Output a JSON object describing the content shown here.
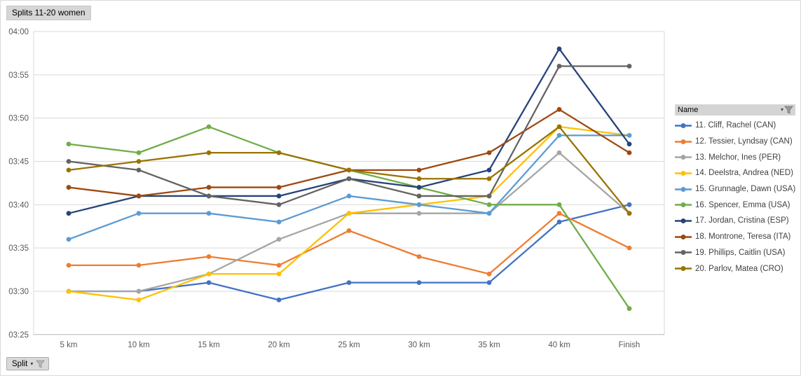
{
  "title_button": "Splits 11-20 women",
  "field_buttons": {
    "split": "Split",
    "legend_header": "Name"
  },
  "chart_data": {
    "type": "line",
    "title": "Splits 11-20 women",
    "xlabel": "",
    "ylabel": "",
    "x_categories": [
      "5 km",
      "10 km",
      "15 km",
      "20 km",
      "25 km",
      "30 km",
      "35 km",
      "40 km",
      "Finish"
    ],
    "y_ticks": [
      "04:00",
      "03:55",
      "03:50",
      "03:45",
      "03:40",
      "03:35",
      "03:30",
      "03:25"
    ],
    "y_range": [
      "03:25",
      "04:00"
    ],
    "grid": true,
    "legend_position": "right",
    "series": [
      {
        "name": "11. Cliff, Rachel (CAN)",
        "color": "#4472C4",
        "values": [
          "03:30",
          "03:30",
          "03:31",
          "03:29",
          "03:31",
          "03:31",
          "03:31",
          "03:38",
          "03:40"
        ]
      },
      {
        "name": "12. Tessier, Lyndsay (CAN)",
        "color": "#ED7D31",
        "values": [
          "03:33",
          "03:33",
          "03:34",
          "03:33",
          "03:37",
          "03:34",
          "03:32",
          "03:39",
          "03:35"
        ]
      },
      {
        "name": "13. Melchor, Ines (PER)",
        "color": "#A5A5A5",
        "values": [
          "03:30",
          "03:30",
          "03:32",
          "03:36",
          "03:39",
          "03:39",
          "03:39",
          "03:46",
          "03:39"
        ]
      },
      {
        "name": "14. Deelstra, Andrea (NED)",
        "color": "#FFC000",
        "values": [
          "03:30",
          "03:29",
          "03:32",
          "03:32",
          "03:39",
          "03:40",
          "03:41",
          "03:49",
          "03:48"
        ]
      },
      {
        "name": "15. Grunnagle, Dawn (USA)",
        "color": "#5B9BD5",
        "values": [
          "03:36",
          "03:39",
          "03:39",
          "03:38",
          "03:41",
          "03:40",
          "03:39",
          "03:48",
          "03:48"
        ]
      },
      {
        "name": "16. Spencer, Emma (USA)",
        "color": "#70AD47",
        "values": [
          "03:47",
          "03:46",
          "03:49",
          "03:46",
          "03:44",
          "03:42",
          "03:40",
          "03:40",
          "03:28"
        ]
      },
      {
        "name": "17. Jordan, Cristina (ESP)",
        "color": "#264478",
        "values": [
          "03:39",
          "03:41",
          "03:41",
          "03:41",
          "03:43",
          "03:42",
          "03:44",
          "03:58",
          "03:47"
        ]
      },
      {
        "name": "18. Montrone, Teresa (ITA)",
        "color": "#9E480E",
        "values": [
          "03:42",
          "03:41",
          "03:42",
          "03:42",
          "03:44",
          "03:44",
          "03:46",
          "03:51",
          "03:46"
        ]
      },
      {
        "name": "19. Phillips, Caitlin (USA)",
        "color": "#636363",
        "values": [
          "03:45",
          "03:44",
          "03:41",
          "03:40",
          "03:43",
          "03:41",
          "03:41",
          "03:56",
          "03:56"
        ]
      },
      {
        "name": "20. Parlov, Matea (CRO)",
        "color": "#997300",
        "values": [
          "03:44",
          "03:45",
          "03:46",
          "03:46",
          "03:44",
          "03:43",
          "03:43",
          "03:49",
          "03:39"
        ]
      }
    ],
    "colors": {
      "gridline": "#D9D9D9",
      "axis_line": "#BFBFBF",
      "tick_label": "#595959"
    }
  }
}
